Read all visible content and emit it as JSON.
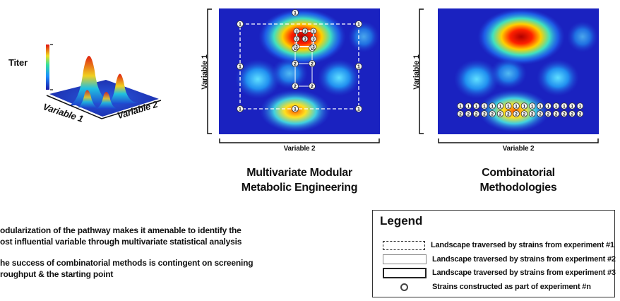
{
  "surface_plot": {
    "z_label": "Titer",
    "x_label": "Variable 1",
    "y_label": "Variable 2"
  },
  "panel_mvme": {
    "y_label": "Variable 1",
    "x_label": "Variable 2",
    "caption_line1": "Multivariate Modular",
    "caption_line2": "Metabolic Engineering"
  },
  "panel_comb": {
    "y_label": "Variable 1",
    "x_label": "Variable 2",
    "caption_line1": "Combinatorial",
    "caption_line2": "Methodologies"
  },
  "notes": [
    {
      "line1": "odularization of the pathway makes it amenable to identify the",
      "line2": "ost influential variable through multivariate statistical analysis"
    },
    {
      "line1": "he success of combinatorial methods is contingent on screening",
      "line2": "roughput & the starting point"
    }
  ],
  "legend": {
    "title": "Legend",
    "items": [
      {
        "text": "Landscape traversed by strains from experiment #1"
      },
      {
        "text": "Landscape traversed by strains from experiment #2"
      },
      {
        "text": "Landscape traversed by strains from experiment #3"
      },
      {
        "text": "Strains constructed as part of experiment #n"
      }
    ]
  },
  "markers": {
    "exp1": "1",
    "exp2": "2",
    "exp3": "3"
  },
  "colors": {
    "heat_low": "#1520b8",
    "heat_high": "#c00000"
  }
}
